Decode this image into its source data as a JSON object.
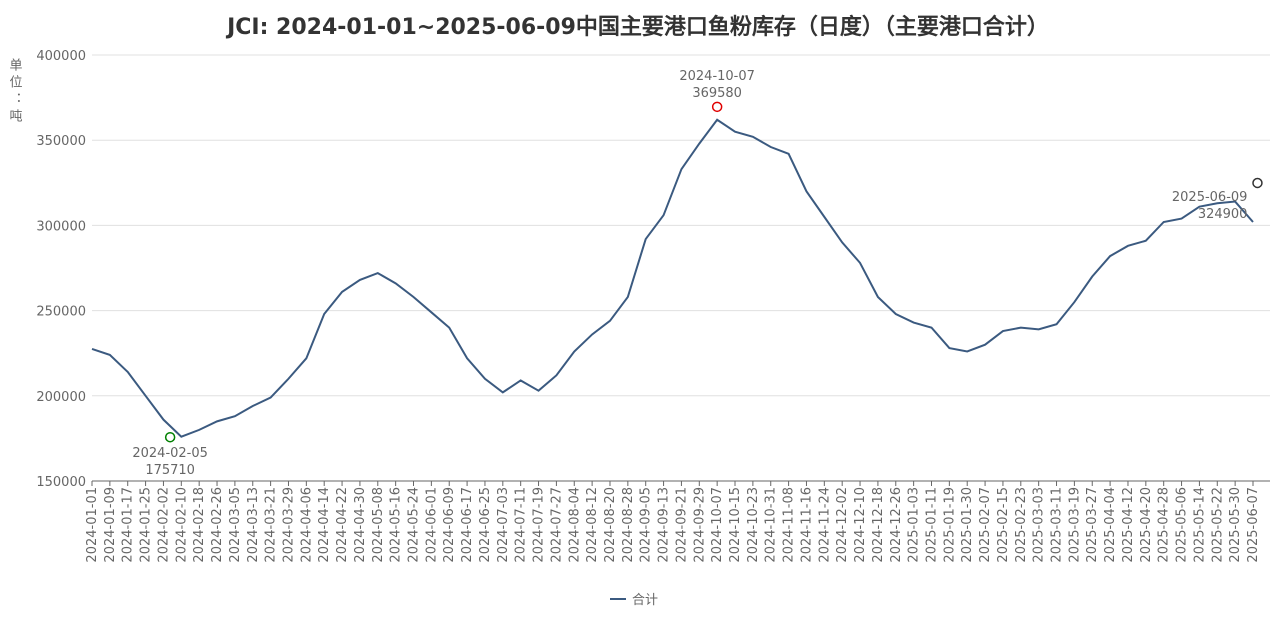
{
  "chart_data": {
    "type": "line",
    "title": "JCI: 2024-01-01~2025-06-09中国主要港口鱼粉库存（日度）（主要港口合计）",
    "y_label": "单位：吨",
    "categories": [
      "2024-01-01",
      "2024-01-09",
      "2024-01-17",
      "2024-01-25",
      "2024-02-02",
      "2024-02-10",
      "2024-02-18",
      "2024-02-26",
      "2024-03-05",
      "2024-03-13",
      "2024-03-21",
      "2024-03-29",
      "2024-04-06",
      "2024-04-14",
      "2024-04-22",
      "2024-04-30",
      "2024-05-08",
      "2024-05-16",
      "2024-05-24",
      "2024-06-01",
      "2024-06-09",
      "2024-06-17",
      "2024-06-25",
      "2024-07-03",
      "2024-07-11",
      "2024-07-19",
      "2024-07-27",
      "2024-08-04",
      "2024-08-12",
      "2024-08-20",
      "2024-08-28",
      "2024-09-05",
      "2024-09-13",
      "2024-09-21",
      "2024-09-29",
      "2024-10-07",
      "2024-10-15",
      "2024-10-23",
      "2024-10-31",
      "2024-11-08",
      "2024-11-16",
      "2024-11-24",
      "2024-12-02",
      "2024-12-10",
      "2024-12-18",
      "2024-12-26",
      "2025-01-03",
      "2025-01-11",
      "2025-01-19",
      "2025-01-30",
      "2025-02-07",
      "2025-02-15",
      "2025-02-23",
      "2025-03-03",
      "2025-03-11",
      "2025-03-19",
      "2025-03-27",
      "2025-04-04",
      "2025-04-12",
      "2025-04-20",
      "2025-04-28",
      "2025-05-06",
      "2025-05-14",
      "2025-05-22",
      "2025-05-30",
      "2025-06-07"
    ],
    "series": [
      {
        "name": "合计",
        "color": "#3b5a80",
        "values": [
          227500,
          224000,
          214000,
          200000,
          186000,
          176000,
          180000,
          185000,
          188000,
          194000,
          199000,
          210000,
          222000,
          248000,
          261000,
          268000,
          272000,
          266000,
          258000,
          249000,
          240000,
          222000,
          210000,
          202000,
          209000,
          203000,
          212000,
          226000,
          236000,
          244000,
          258000,
          292000,
          306000,
          333000,
          348000,
          362000,
          355000,
          352000,
          346000,
          342000,
          320000,
          305000,
          290000,
          278000,
          258000,
          248000,
          243000,
          240000,
          228000,
          226000,
          230000,
          238000,
          240000,
          239000,
          242000,
          255000,
          270000,
          282000,
          288000,
          291000,
          302000,
          304000,
          311000,
          313000,
          314000,
          302000
        ]
      }
    ],
    "annotations": [
      {
        "x": "2024-02-05",
        "value": 175710,
        "color": "#008000"
      },
      {
        "x": "2024-10-07",
        "value": 369580,
        "color": "#e00000"
      },
      {
        "x": "2025-06-09",
        "value": 324900,
        "color": "#333333"
      }
    ],
    "ylim": [
      150000,
      400000
    ],
    "yticks": [
      150000,
      200000,
      250000,
      300000,
      350000,
      400000
    ],
    "grid": true,
    "legend": "bottom"
  }
}
